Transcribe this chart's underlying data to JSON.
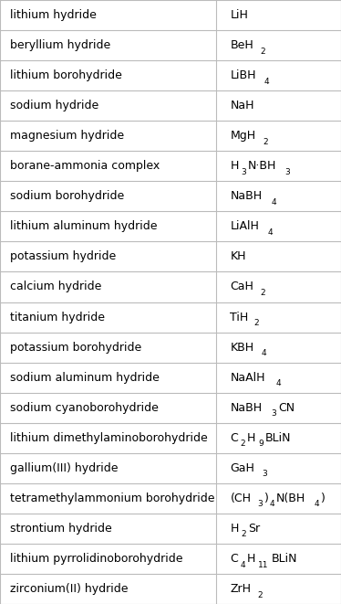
{
  "rows": [
    {
      "name": "lithium hydride",
      "formula_parts": [
        {
          "text": "LiH",
          "sub": ""
        }
      ]
    },
    {
      "name": "beryllium hydride",
      "formula_parts": [
        {
          "text": "BeH",
          "sub": "2"
        }
      ]
    },
    {
      "name": "lithium borohydride",
      "formula_parts": [
        {
          "text": "LiBH",
          "sub": "4"
        }
      ]
    },
    {
      "name": "sodium hydride",
      "formula_parts": [
        {
          "text": "NaH",
          "sub": ""
        }
      ]
    },
    {
      "name": "magnesium hydride",
      "formula_parts": [
        {
          "text": "MgH",
          "sub": "2"
        }
      ]
    },
    {
      "name": "borane-ammonia complex",
      "formula_parts": [
        {
          "text": "H",
          "sub": "3"
        },
        {
          "text": "N·BH",
          "sub": "3"
        }
      ]
    },
    {
      "name": "sodium borohydride",
      "formula_parts": [
        {
          "text": "NaBH",
          "sub": "4"
        }
      ]
    },
    {
      "name": "lithium aluminum hydride",
      "formula_parts": [
        {
          "text": "LiAlH",
          "sub": "4"
        }
      ]
    },
    {
      "name": "potassium hydride",
      "formula_parts": [
        {
          "text": "KH",
          "sub": ""
        }
      ]
    },
    {
      "name": "calcium hydride",
      "formula_parts": [
        {
          "text": "CaH",
          "sub": "2"
        }
      ]
    },
    {
      "name": "titanium hydride",
      "formula_parts": [
        {
          "text": "TiH",
          "sub": "2"
        }
      ]
    },
    {
      "name": "potassium borohydride",
      "formula_parts": [
        {
          "text": "KBH",
          "sub": "4"
        }
      ]
    },
    {
      "name": "sodium aluminum hydride",
      "formula_parts": [
        {
          "text": "NaAlH",
          "sub": "4"
        }
      ]
    },
    {
      "name": "sodium cyanoborohydride",
      "formula_parts": [
        {
          "text": "NaBH",
          "sub": "3"
        },
        {
          "text": "CN",
          "sub": ""
        }
      ]
    },
    {
      "name": "lithium dimethylaminoborohydride",
      "formula_parts": [
        {
          "text": "C",
          "sub": "2"
        },
        {
          "text": "H",
          "sub": "9"
        },
        {
          "text": "BLiN",
          "sub": ""
        }
      ]
    },
    {
      "name": "gallium(III) hydride",
      "formula_parts": [
        {
          "text": "GaH",
          "sub": "3"
        }
      ]
    },
    {
      "name": "tetramethylammonium borohydride",
      "formula_parts": [
        {
          "text": "(CH",
          "sub": "3"
        },
        {
          "text": ")",
          "sub": "4"
        },
        {
          "text": "N(BH",
          "sub": "4"
        },
        {
          "text": ")",
          "sub": ""
        }
      ]
    },
    {
      "name": "strontium hydride",
      "formula_parts": [
        {
          "text": "H",
          "sub": "2"
        },
        {
          "text": "Sr",
          "sub": ""
        }
      ]
    },
    {
      "name": "lithium pyrrolidinoborohydride",
      "formula_parts": [
        {
          "text": "C",
          "sub": "4"
        },
        {
          "text": "H",
          "sub": "11"
        },
        {
          "text": "BLiN",
          "sub": ""
        }
      ]
    },
    {
      "name": "zirconium(II) hydride",
      "formula_parts": [
        {
          "text": "ZrH",
          "sub": "2"
        }
      ]
    }
  ],
  "col_split": 0.635,
  "bg_color": "#ffffff",
  "line_color": "#bbbbbb",
  "text_color": "#000000",
  "font_size": 9.0,
  "sub_font_size": 6.5
}
